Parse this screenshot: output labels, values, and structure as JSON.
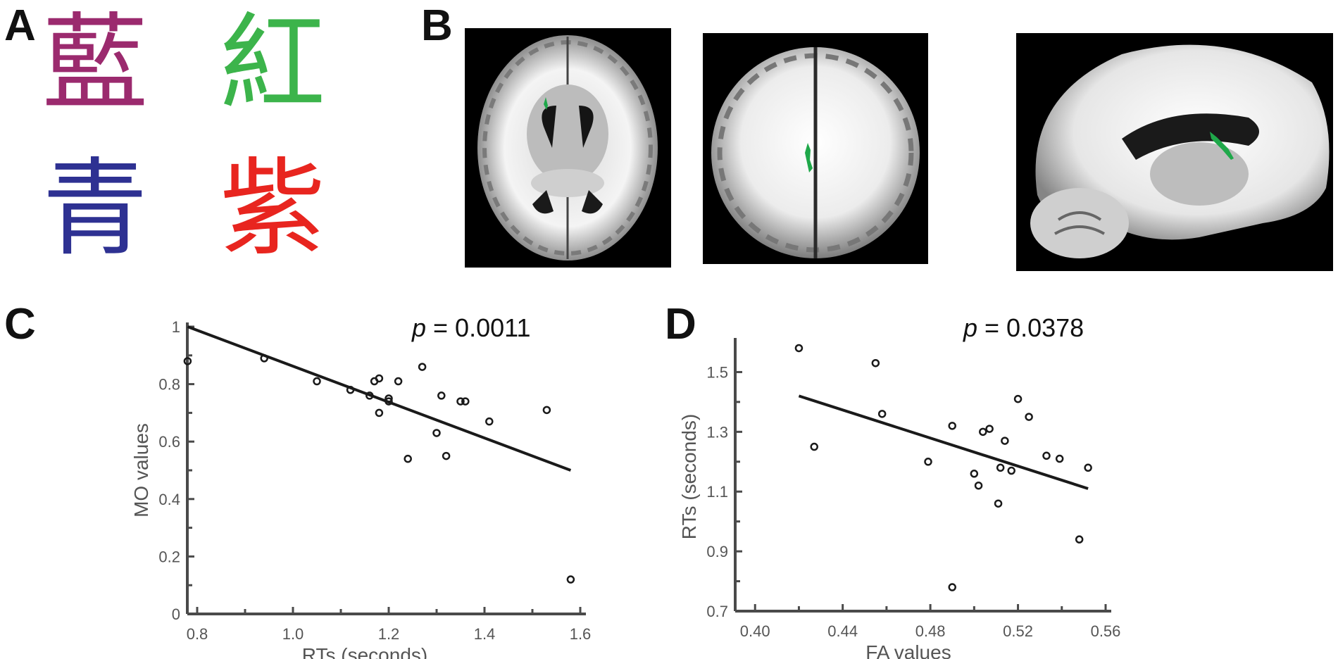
{
  "panels": {
    "a": "A",
    "b": "B",
    "c": "C",
    "d": "D"
  },
  "stroop_words": [
    {
      "char": "藍",
      "color": "#9b2a6e"
    },
    {
      "char": "紅",
      "color": "#3cb44b"
    },
    {
      "char": "青",
      "color": "#2e3192"
    },
    {
      "char": "紫",
      "color": "#e8251f"
    }
  ],
  "highlight_color": "#1fa84a",
  "chart_data": [
    {
      "type": "scatter",
      "panel": "C",
      "xlabel": "RTs (seconds)",
      "ylabel": "MO values",
      "annotation_italic": "p",
      "annotation_value": " = 0.0011",
      "xlim": [
        0.7,
        1.6
      ],
      "ylim": [
        0,
        1
      ],
      "xticks": [
        0.8,
        1.0,
        1.2,
        1.4,
        1.6
      ],
      "xtick_labels": [
        "0.8",
        "1.0",
        "1.2",
        "1.4",
        "1.6"
      ],
      "yticks": [
        0,
        0.2,
        0.4,
        0.6,
        0.8,
        1
      ],
      "ytick_labels": [
        "0",
        "0.2",
        "0.4",
        "0.6",
        "0.8",
        "1"
      ],
      "points": [
        [
          0.78,
          0.88
        ],
        [
          0.94,
          0.89
        ],
        [
          1.05,
          0.81
        ],
        [
          1.12,
          0.78
        ],
        [
          1.16,
          0.76
        ],
        [
          1.17,
          0.81
        ],
        [
          1.18,
          0.82
        ],
        [
          1.18,
          0.7
        ],
        [
          1.2,
          0.75
        ],
        [
          1.2,
          0.74
        ],
        [
          1.22,
          0.81
        ],
        [
          1.24,
          0.54
        ],
        [
          1.27,
          0.86
        ],
        [
          1.3,
          0.63
        ],
        [
          1.31,
          0.76
        ],
        [
          1.32,
          0.55
        ],
        [
          1.35,
          0.74
        ],
        [
          1.36,
          0.74
        ],
        [
          1.41,
          0.67
        ],
        [
          1.53,
          0.71
        ],
        [
          1.58,
          0.12
        ]
      ],
      "fit": [
        [
          0.78,
          1.0
        ],
        [
          1.58,
          0.5
        ]
      ]
    },
    {
      "type": "scatter",
      "panel": "D",
      "xlabel": "FA values",
      "ylabel": "RTs (seconds)",
      "annotation_italic": "p",
      "annotation_value": " = 0.0378",
      "xlim": [
        0.38,
        0.56
      ],
      "ylim": [
        0.7,
        1.6
      ],
      "xticks": [
        0.4,
        0.44,
        0.48,
        0.52,
        0.56
      ],
      "xtick_labels": [
        "0.40",
        "0.44",
        "0.48",
        "0.52",
        "0.56"
      ],
      "yticks": [
        0.7,
        0.9,
        1.1,
        1.3,
        1.5
      ],
      "ytick_labels": [
        "0.7",
        "0.9",
        "1.1",
        "1.3",
        "1.5"
      ],
      "points": [
        [
          0.42,
          1.58
        ],
        [
          0.427,
          1.25
        ],
        [
          0.455,
          1.53
        ],
        [
          0.458,
          1.36
        ],
        [
          0.479,
          1.2
        ],
        [
          0.49,
          1.32
        ],
        [
          0.49,
          0.78
        ],
        [
          0.5,
          1.16
        ],
        [
          0.502,
          1.12
        ],
        [
          0.504,
          1.3
        ],
        [
          0.507,
          1.31
        ],
        [
          0.511,
          1.06
        ],
        [
          0.512,
          1.18
        ],
        [
          0.514,
          1.27
        ],
        [
          0.517,
          1.17
        ],
        [
          0.52,
          1.41
        ],
        [
          0.525,
          1.35
        ],
        [
          0.533,
          1.22
        ],
        [
          0.539,
          1.21
        ],
        [
          0.548,
          0.94
        ],
        [
          0.552,
          1.18
        ]
      ],
      "fit": [
        [
          0.42,
          1.42
        ],
        [
          0.552,
          1.11
        ]
      ]
    }
  ]
}
